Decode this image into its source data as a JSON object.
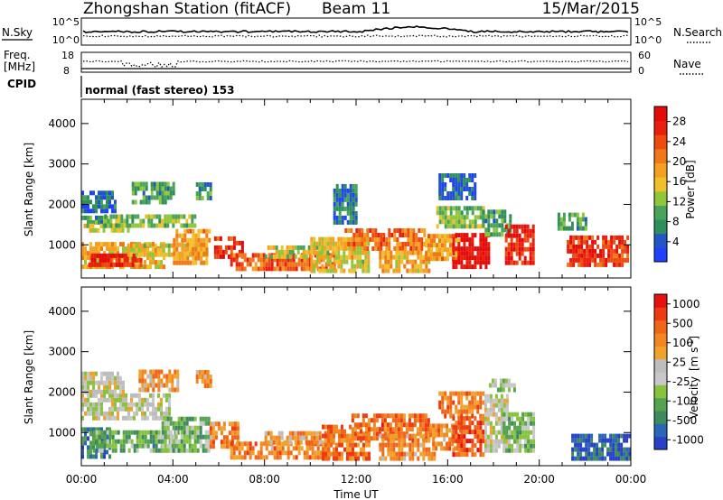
{
  "header": {
    "station": "Zhongshan Station (fitACF)",
    "beam": "Beam 11",
    "date": "15/Mar/2015"
  },
  "nsky_panel": {
    "left_label": "N.Sky",
    "right_label": "N.Search",
    "left_ticks": [
      "10^5",
      "10^0"
    ],
    "right_ticks": [
      "10^5",
      "10^0"
    ]
  },
  "freq_panel": {
    "left_label_line1": "Freq.",
    "left_label_line2": "[MHz]",
    "left_ticks": [
      "18",
      "8"
    ],
    "right_ticks": [
      "60",
      "0"
    ],
    "right_label": "Nave"
  },
  "cpid": {
    "label": "CPID",
    "mode_text": "normal (fast stereo) 153"
  },
  "chart_data": [
    {
      "type": "heatmap",
      "name": "power",
      "ylabel": "Slant Range [km]",
      "ylim": [
        180,
        4600
      ],
      "yticks": [
        1000,
        2000,
        3000,
        4000
      ],
      "xlim": [
        0,
        24
      ],
      "colorbar_label": "Power [dB]",
      "colorbar_ticks": [
        "4",
        "8",
        "12",
        "16",
        "20",
        "24",
        "28"
      ],
      "colorbar_colors": [
        "#1e40ff",
        "#2255c8",
        "#2f8f5a",
        "#49a35a",
        "#8fc63a",
        "#f0c02a",
        "#f5a023",
        "#f07818",
        "#ee4a10",
        "#e81e0e",
        "#e40a0a"
      ],
      "regions": [
        {
          "t0": 0.0,
          "t1": 1.2,
          "r0": 1500,
          "r1": 1720,
          "level": 0.3
        },
        {
          "t0": 0.0,
          "t1": 1.5,
          "r0": 1780,
          "r1": 2320,
          "level": 0.18
        },
        {
          "t0": 0.1,
          "t1": 2.0,
          "r0": 1300,
          "r1": 1500,
          "level": 0.45
        },
        {
          "t0": 0.0,
          "t1": 3.6,
          "r0": 400,
          "r1": 1050,
          "level": 0.55
        },
        {
          "t0": 0.3,
          "t1": 2.6,
          "r0": 450,
          "r1": 700,
          "level": 0.9
        },
        {
          "t0": 1.0,
          "t1": 5.0,
          "r0": 1420,
          "r1": 1700,
          "level": 0.35
        },
        {
          "t0": 2.0,
          "t1": 5.5,
          "r0": 700,
          "r1": 1000,
          "level": 0.5
        },
        {
          "t0": 2.2,
          "t1": 4.0,
          "r0": 2000,
          "r1": 2450,
          "level": 0.3
        },
        {
          "t0": 4.0,
          "t1": 5.6,
          "r0": 500,
          "r1": 1300,
          "level": 0.6
        },
        {
          "t0": 5.0,
          "t1": 5.6,
          "r0": 2100,
          "r1": 2450,
          "level": 0.25
        },
        {
          "t0": 5.8,
          "t1": 7.0,
          "r0": 650,
          "r1": 1150,
          "level": 0.85
        },
        {
          "t0": 6.5,
          "t1": 11.0,
          "r0": 350,
          "r1": 750,
          "level": 0.75
        },
        {
          "t0": 8.0,
          "t1": 10.5,
          "r0": 650,
          "r1": 900,
          "level": 0.45
        },
        {
          "t0": 10.0,
          "t1": 12.5,
          "r0": 300,
          "r1": 1100,
          "level": 0.5
        },
        {
          "t0": 11.5,
          "t1": 15.0,
          "r0": 850,
          "r1": 1350,
          "level": 0.7
        },
        {
          "t0": 11.0,
          "t1": 12.0,
          "r0": 1500,
          "r1": 2400,
          "level": 0.2
        },
        {
          "t0": 13.0,
          "t1": 15.2,
          "r0": 300,
          "r1": 850,
          "level": 0.55
        },
        {
          "t0": 15.0,
          "t1": 16.5,
          "r0": 600,
          "r1": 1200,
          "level": 0.6
        },
        {
          "t0": 15.5,
          "t1": 17.6,
          "r0": 1400,
          "r1": 1950,
          "level": 0.4
        },
        {
          "t0": 15.6,
          "t1": 17.2,
          "r0": 2100,
          "r1": 2700,
          "level": 0.15
        },
        {
          "t0": 16.2,
          "t1": 17.8,
          "r0": 400,
          "r1": 1200,
          "level": 0.97
        },
        {
          "t0": 17.5,
          "t1": 18.8,
          "r0": 1200,
          "r1": 1800,
          "level": 0.3
        },
        {
          "t0": 18.5,
          "t1": 19.8,
          "r0": 500,
          "r1": 1500,
          "level": 0.88
        },
        {
          "t0": 21.2,
          "t1": 23.9,
          "r0": 450,
          "r1": 1200,
          "level": 0.85
        },
        {
          "t0": 20.8,
          "t1": 22.0,
          "r0": 1350,
          "r1": 1750,
          "level": 0.3
        }
      ]
    },
    {
      "type": "heatmap",
      "name": "velocity",
      "ylabel": "Slant Range [km]",
      "ylim": [
        180,
        4600
      ],
      "yticks": [
        1000,
        2000,
        3000,
        4000
      ],
      "xlim": [
        0,
        24
      ],
      "xticks": [
        "00:00",
        "04:00",
        "08:00",
        "12:00",
        "16:00",
        "20:00",
        "00:00"
      ],
      "xlabel": "Time UT",
      "colorbar_label_text": "Velocity",
      "colorbar_label_units_open": "[m s",
      "colorbar_label_units_sup": "-1",
      "colorbar_label_units_close": "]",
      "colorbar_ticks": [
        "1000",
        "500",
        "100",
        "25",
        "-25",
        "-100",
        "-500",
        "-1000"
      ],
      "colorbar_colors": [
        "#2a3fc8",
        "#2a66b6",
        "#3d8a5e",
        "#55a34e",
        "#88c23e",
        "#c8c8c8",
        "#bdbdbd",
        "#f0a22c",
        "#f38620",
        "#f06518",
        "#ee3a12",
        "#e61010"
      ],
      "regions": [
        {
          "t0": 0.0,
          "t1": 1.2,
          "r0": 350,
          "r1": 1050,
          "level": 0.2
        },
        {
          "t0": 0.0,
          "t1": 3.8,
          "r0": 1300,
          "r1": 1950,
          "level": 0.48
        },
        {
          "t0": 0.0,
          "t1": 1.8,
          "r0": 1950,
          "r1": 2400,
          "level": 0.5
        },
        {
          "t0": 0.5,
          "t1": 4.2,
          "r0": 500,
          "r1": 1050,
          "level": 0.3
        },
        {
          "t0": 3.5,
          "t1": 5.6,
          "r0": 500,
          "r1": 1300,
          "level": 0.35
        },
        {
          "t0": 2.5,
          "t1": 4.2,
          "r0": 2000,
          "r1": 2450,
          "level": 0.68
        },
        {
          "t0": 5.0,
          "t1": 5.6,
          "r0": 2100,
          "r1": 2450,
          "level": 0.7
        },
        {
          "t0": 5.6,
          "t1": 6.9,
          "r0": 600,
          "r1": 1200,
          "level": 0.72
        },
        {
          "t0": 6.5,
          "t1": 10.8,
          "r0": 330,
          "r1": 760,
          "level": 0.72
        },
        {
          "t0": 8.0,
          "t1": 11.0,
          "r0": 700,
          "r1": 950,
          "level": 0.66
        },
        {
          "t0": 10.5,
          "t1": 12.6,
          "r0": 300,
          "r1": 1100,
          "level": 0.76
        },
        {
          "t0": 11.8,
          "t1": 15.2,
          "r0": 800,
          "r1": 1400,
          "level": 0.78
        },
        {
          "t0": 13.0,
          "t1": 15.4,
          "r0": 300,
          "r1": 900,
          "level": 0.7
        },
        {
          "t0": 15.2,
          "t1": 16.6,
          "r0": 550,
          "r1": 1150,
          "level": 0.72
        },
        {
          "t0": 15.6,
          "t1": 17.6,
          "r0": 1350,
          "r1": 2000,
          "level": 0.74
        },
        {
          "t0": 16.2,
          "t1": 17.6,
          "r0": 400,
          "r1": 1300,
          "level": 0.82
        },
        {
          "t0": 17.6,
          "t1": 18.6,
          "r0": 500,
          "r1": 1900,
          "level": 0.5
        },
        {
          "t0": 18.4,
          "t1": 19.8,
          "r0": 500,
          "r1": 1500,
          "level": 0.35
        },
        {
          "t0": 17.8,
          "t1": 18.9,
          "r0": 2000,
          "r1": 2300,
          "level": 0.4
        },
        {
          "t0": 21.4,
          "t1": 23.9,
          "r0": 300,
          "r1": 950,
          "level": 0.1
        }
      ]
    }
  ]
}
